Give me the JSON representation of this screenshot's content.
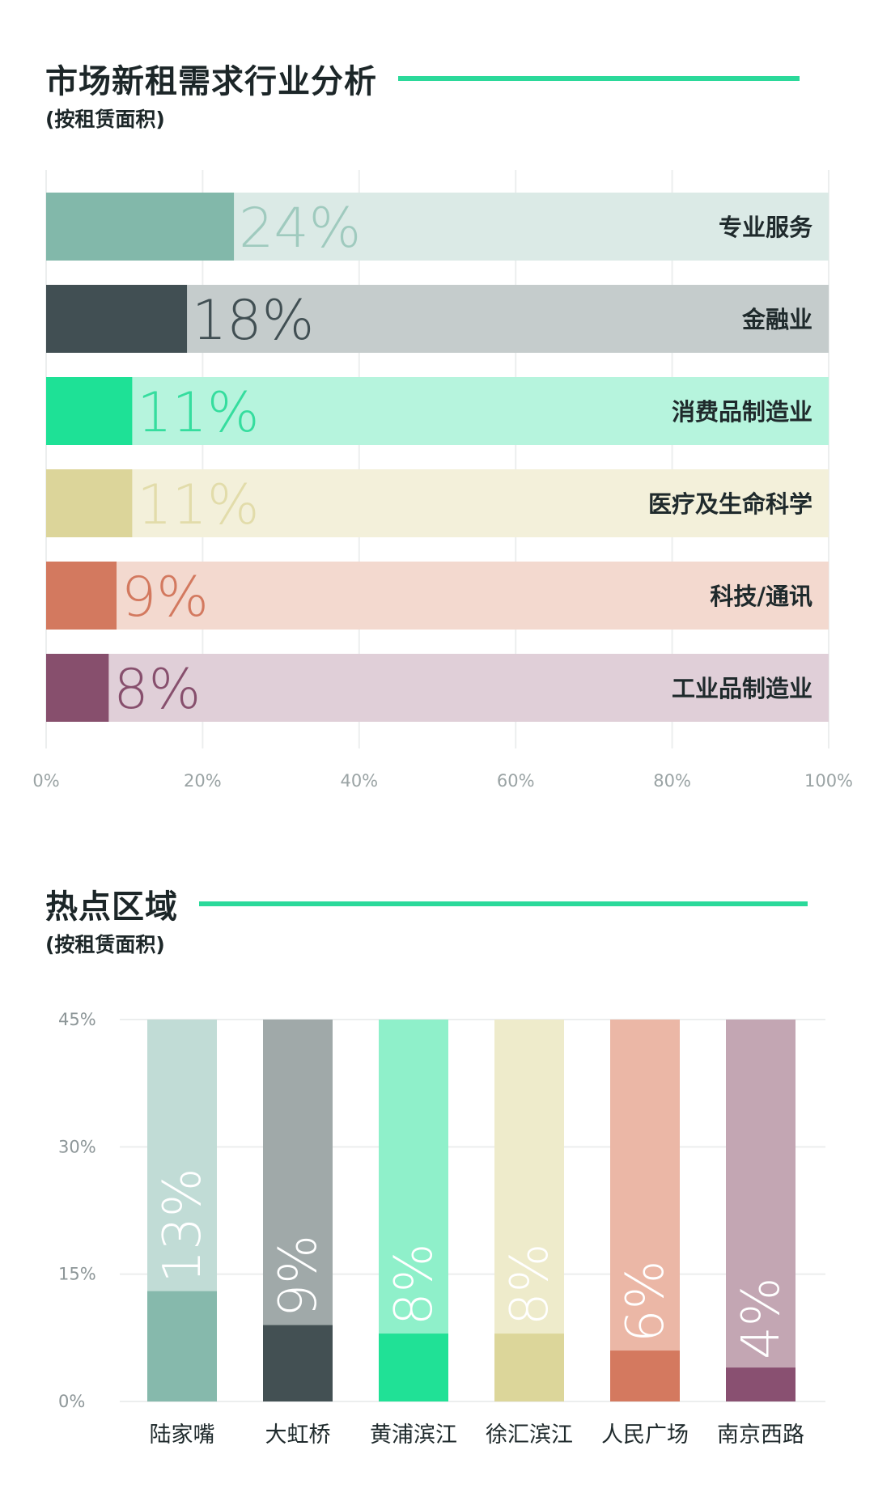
{
  "chart_data": [
    {
      "type": "bar",
      "orientation": "horizontal",
      "title": "市场新租需求行业分析",
      "subtitle": "(按租赁面积)",
      "categories": [
        "专业服务",
        "金融业",
        "消费品制造业",
        "医疗及生命科学",
        "科技/通讯",
        "工业品制造业"
      ],
      "values": [
        24,
        18,
        11,
        11,
        9,
        8
      ],
      "value_labels": [
        "24%",
        "18%",
        "11%",
        "11%",
        "9%",
        "8%"
      ],
      "xlim": [
        0,
        100
      ],
      "xticks": [
        "0%",
        "20%",
        "40%",
        "60%",
        "80%",
        "100%"
      ],
      "grid": true,
      "colors": {
        "bar": [
          "#82b8aa",
          "#414f53",
          "#1ee196",
          "#dcd59a",
          "#d3795f",
          "#874f6d"
        ],
        "track": [
          "#dbeae6",
          "#c5cccc",
          "#b6f4dd",
          "#f3f0da",
          "#f3d9cf",
          "#e0cfd8"
        ],
        "label": [
          "#9fcabe",
          "#414f53",
          "#35dd9e",
          "#e2dcaa",
          "#d3795f",
          "#874f6d"
        ]
      }
    },
    {
      "type": "bar",
      "orientation": "vertical",
      "title": "热点区域",
      "subtitle": "(按租赁面积)",
      "categories": [
        "陆家嘴",
        "大虹桥",
        "黄浦滨江",
        "徐汇滨江",
        "人民广场",
        "南京西路"
      ],
      "values": [
        13,
        9,
        8,
        8,
        6,
        4
      ],
      "value_labels": [
        "13%",
        "9%",
        "8%",
        "8%",
        "6%",
        "4%"
      ],
      "ylim": [
        0,
        45
      ],
      "yticks": [
        0,
        15,
        30,
        45
      ],
      "ytick_labels": [
        "0%",
        "15%",
        "30%",
        "45%"
      ],
      "grid": true,
      "colors": {
        "bar": [
          "#86b9ac",
          "#435053",
          "#20e196",
          "#dcd69a",
          "#d4795f",
          "#895071"
        ],
        "track": [
          "#c1dcd6",
          "#a0a9a9",
          "#8ff0ca",
          "#eeebcb",
          "#ebb7a6",
          "#c3a6b3"
        ]
      }
    }
  ]
}
